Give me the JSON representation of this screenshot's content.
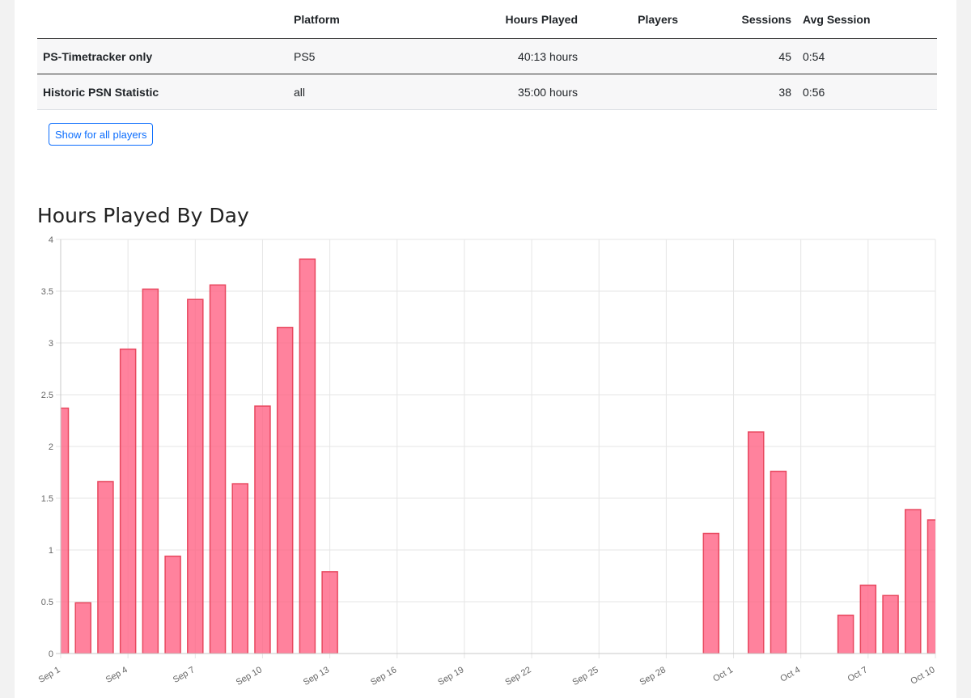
{
  "table": {
    "headers": [
      "",
      "Platform",
      "Hours Played",
      "Players",
      "Sessions",
      "Avg Session"
    ],
    "rows": [
      {
        "name": "PS-Timetracker only",
        "platform": "PS5",
        "hours": "40:13 hours",
        "players": "",
        "sessions": "45",
        "avg": "0:54"
      },
      {
        "name": "Historic PSN Statistic",
        "platform": "all",
        "hours": "35:00 hours",
        "players": "",
        "sessions": "38",
        "avg": "0:56"
      }
    ]
  },
  "show_all_button": "Show for all players",
  "chart_title": "Hours Played By Day",
  "chart_data": {
    "type": "bar",
    "ylim": [
      0,
      4
    ],
    "yticks": [
      0,
      0.5,
      1,
      1.5,
      2,
      2.5,
      3,
      3.5,
      4
    ],
    "tick_labels": [
      "Sep 1",
      "Sep 4",
      "Sep 7",
      "Sep 10",
      "Sep 13",
      "Sep 16",
      "Sep 19",
      "Sep 22",
      "Sep 25",
      "Sep 28",
      "Oct 1",
      "Oct 4",
      "Oct 7",
      "Oct 10"
    ],
    "grid": true,
    "bar_color": "#ff6384",
    "categories": [
      "Sep 1",
      "Sep 2",
      "Sep 3",
      "Sep 4",
      "Sep 5",
      "Sep 6",
      "Sep 7",
      "Sep 8",
      "Sep 9",
      "Sep 10",
      "Sep 11",
      "Sep 12",
      "Sep 13",
      "Sep 14",
      "Sep 15",
      "Sep 16",
      "Sep 17",
      "Sep 18",
      "Sep 19",
      "Sep 20",
      "Sep 21",
      "Sep 22",
      "Sep 23",
      "Sep 24",
      "Sep 25",
      "Sep 26",
      "Sep 27",
      "Sep 28",
      "Sep 29",
      "Sep 30",
      "Oct 1",
      "Oct 2",
      "Oct 3",
      "Oct 4",
      "Oct 5",
      "Oct 6",
      "Oct 7",
      "Oct 8",
      "Oct 9",
      "Oct 10"
    ],
    "values": [
      2.37,
      0.49,
      1.66,
      2.94,
      3.52,
      0.94,
      3.42,
      3.56,
      1.64,
      2.39,
      3.15,
      3.81,
      0.79,
      0,
      0,
      0,
      0,
      0,
      0,
      0,
      0,
      0,
      0,
      0,
      0,
      0,
      0,
      0,
      0,
      1.16,
      0,
      2.14,
      1.76,
      0,
      0,
      0.37,
      0.66,
      0.56,
      1.39,
      1.29
    ]
  }
}
